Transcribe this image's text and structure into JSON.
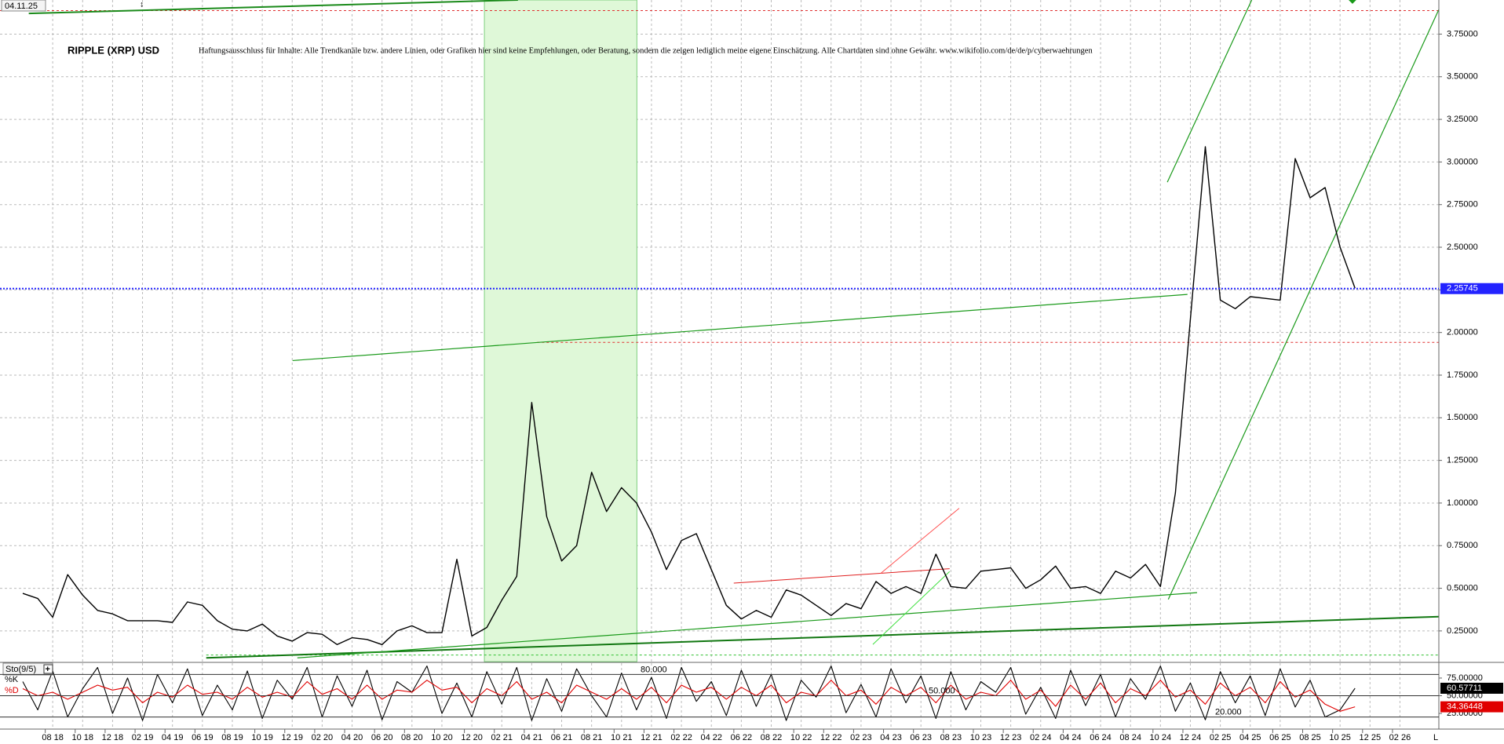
{
  "date_label": "04.11.25",
  "corner_label": "L",
  "chart_data": {
    "type": "line",
    "title": "RIPPLE (XRP) USD",
    "subtitle": "Haftungsausschluss für Inhalte: Alle Trendkanäle bzw. andere Linien, oder Grafiken hier sind keine Empfehlungen, oder Beratung, sondern die zeigen lediglich meine eigene Einschätzung. Alle Chartdaten sind ohne Gewähr. www.wikifolio.com/de/de/p/cyberwaehrungen",
    "categories": [
      null,
      null,
      "08 18",
      null,
      "10 18",
      null,
      "12 18",
      null,
      "02 19",
      null,
      "04 19",
      null,
      "06 19",
      null,
      "08 19",
      null,
      "10 19",
      null,
      "12 19",
      null,
      "02 20",
      null,
      "04 20",
      null,
      "06 20",
      null,
      "08 20",
      null,
      "10 20",
      null,
      "12 20",
      null,
      "02 21",
      null,
      "04 21",
      null,
      "06 21",
      null,
      "08 21",
      null,
      "10 21",
      null,
      "12 21",
      null,
      "02 22",
      null,
      "04 22",
      null,
      "06 22",
      null,
      "08 22",
      null,
      "10 22",
      null,
      "12 22",
      null,
      "02 23",
      null,
      "04 23",
      null,
      "06 23",
      null,
      "08 23",
      null,
      "10 23",
      null,
      "12 23",
      null,
      "02 24",
      null,
      "04 24",
      null,
      "06 24",
      null,
      "08 24",
      null,
      "10 24",
      null,
      "12 24",
      null,
      "02 25",
      null,
      "04 25",
      null,
      "06 25",
      null,
      "08 25",
      null,
      "10 25",
      null,
      "12 25",
      null,
      "02 26"
    ],
    "series": [
      {
        "color": "#000000",
        "values": [
          0.47,
          0.44,
          0.33,
          0.58,
          0.46,
          0.37,
          0.35,
          0.31,
          0.31,
          0.31,
          0.3,
          0.42,
          0.4,
          0.31,
          0.26,
          0.25,
          0.29,
          0.22,
          0.19,
          0.24,
          0.23,
          0.17,
          0.21,
          0.2,
          0.17,
          0.25,
          0.28,
          0.24,
          0.24,
          0.67,
          0.22,
          0.27,
          0.43,
          0.57,
          1.59,
          0.92,
          0.66,
          0.75,
          1.18,
          0.95,
          1.09,
          1.0,
          0.83,
          0.61,
          0.78,
          0.82,
          0.61,
          0.4,
          0.32,
          0.37,
          0.33,
          0.49,
          0.46,
          0.4,
          0.34,
          0.41,
          0.38,
          0.54,
          0.47,
          0.51,
          0.47,
          0.7,
          0.51,
          0.5,
          0.6,
          0.61,
          0.62,
          0.5,
          0.55,
          0.63,
          0.5,
          0.51,
          0.47,
          0.6,
          0.56,
          0.64,
          0.51,
          1.06,
          2.08,
          3.09,
          2.19,
          2.14,
          2.21,
          2.2,
          2.19,
          3.02,
          2.79,
          2.85,
          2.5,
          2.26,
          null,
          null,
          null
        ]
      }
    ],
    "last_price": 2.25745,
    "last_price_color": "#2323ff",
    "ylim": [
      0.07,
      3.95
    ],
    "yticks": [
      {
        "value": 3.75,
        "label": "3.75000"
      },
      {
        "value": 3.5,
        "label": "3.50000"
      },
      {
        "value": 3.25,
        "label": "3.25000"
      },
      {
        "value": 3,
        "label": "3.00000"
      },
      {
        "value": 2.75,
        "label": "2.75000"
      },
      {
        "value": 2.5,
        "label": "2.50000"
      },
      {
        "value": 2.25,
        "label": "2.25000"
      },
      {
        "value": 2,
        "label": "2.00000"
      },
      {
        "value": 1.75,
        "label": "1.75000"
      },
      {
        "value": 1.5,
        "label": "1.50000"
      },
      {
        "value": 1.25,
        "label": "1.25000"
      },
      {
        "value": 1,
        "label": "1.00000"
      },
      {
        "value": 0.75,
        "label": "0.75000"
      },
      {
        "value": 0.5,
        "label": "0.50000"
      },
      {
        "value": 0.25,
        "label": "0.25000"
      }
    ],
    "grid": true,
    "indicator": {
      "title": "Sto(9/5)",
      "ylim": [
        4,
        96
      ],
      "yticks": [
        {
          "value": 75,
          "label": "75.00000"
        },
        {
          "value": 50,
          "label": "50.00000"
        },
        {
          "value": 25,
          "label": "25.00000"
        }
      ],
      "levels": [
        {
          "value": 80,
          "label": "80.000"
        },
        {
          "value": 50,
          "label": "50.000"
        },
        {
          "value": 20,
          "label": "20.000"
        }
      ],
      "series": [
        {
          "name": "%K",
          "color": "#000000",
          "last_value": 60.57711,
          "values": [
            70,
            30,
            85,
            20,
            60,
            90,
            25,
            75,
            15,
            80,
            40,
            88,
            22,
            65,
            30,
            85,
            18,
            72,
            45,
            90,
            20,
            78,
            35,
            86,
            16,
            70,
            55,
            92,
            25,
            68,
            20,
            84,
            38,
            90,
            15,
            74,
            28,
            88,
            50,
            20,
            82,
            30,
            76,
            18,
            90,
            42,
            70,
            22,
            86,
            35,
            80,
            15,
            72,
            48,
            92,
            26,
            66,
            20,
            88,
            40,
            78,
            18,
            84,
            30,
            70,
            55,
            90,
            24,
            62,
            18,
            86,
            36,
            80,
            20,
            74,
            45,
            92,
            28,
            68,
            16,
            84,
            40,
            78,
            22,
            88,
            34,
            72,
            20,
            30,
            60.57711,
            null,
            null,
            null
          ]
        },
        {
          "name": "%D",
          "color": "#e00000",
          "last_value": 34.36448,
          "values": [
            60,
            50,
            55,
            45,
            55,
            65,
            58,
            62,
            40,
            55,
            48,
            65,
            52,
            55,
            45,
            62,
            48,
            55,
            48,
            70,
            52,
            60,
            45,
            65,
            45,
            58,
            55,
            72,
            58,
            62,
            40,
            60,
            50,
            70,
            45,
            55,
            40,
            65,
            55,
            45,
            60,
            45,
            62,
            40,
            65,
            55,
            62,
            45,
            62,
            50,
            65,
            40,
            55,
            50,
            72,
            50,
            58,
            38,
            62,
            50,
            62,
            40,
            65,
            45,
            55,
            50,
            72,
            45,
            58,
            35,
            65,
            45,
            68,
            40,
            60,
            50,
            72,
            48,
            58,
            38,
            68,
            50,
            62,
            40,
            70,
            48,
            58,
            38,
            28,
            34.36448,
            null,
            null,
            null
          ]
        }
      ]
    }
  }
}
